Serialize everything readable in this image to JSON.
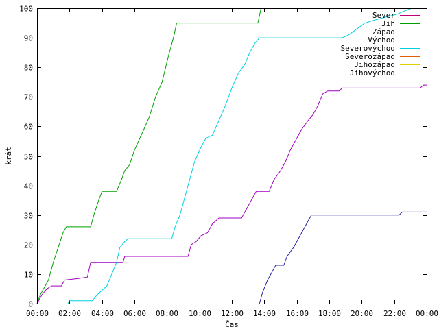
{
  "chart_data": {
    "type": "line",
    "xlabel": "Čas",
    "ylabel": "krát",
    "xlim": [
      0,
      24
    ],
    "ylim": [
      0,
      100
    ],
    "x_ticks": [
      "00:00",
      "02:00",
      "04:00",
      "06:00",
      "08:00",
      "10:00",
      "12:00",
      "14:00",
      "16:00",
      "18:00",
      "20:00",
      "22:00",
      "00:00"
    ],
    "y_ticks": [
      0,
      10,
      20,
      30,
      40,
      50,
      60,
      70,
      80,
      90,
      100
    ],
    "grid": false,
    "legend_position": "top-right",
    "series": [
      {
        "name": "Sever",
        "color": "#c00070",
        "points": []
      },
      {
        "name": "Jih",
        "color": "#00a000",
        "points": [
          [
            0,
            0
          ],
          [
            0.2,
            3
          ],
          [
            0.4,
            5
          ],
          [
            0.7,
            8
          ],
          [
            1.0,
            14
          ],
          [
            1.3,
            19
          ],
          [
            1.6,
            24
          ],
          [
            1.8,
            26
          ],
          [
            3.3,
            26
          ],
          [
            3.5,
            30
          ],
          [
            3.8,
            35
          ],
          [
            4.0,
            38
          ],
          [
            4.9,
            38
          ],
          [
            5.2,
            42
          ],
          [
            5.4,
            45
          ],
          [
            5.7,
            47
          ],
          [
            6.0,
            52
          ],
          [
            6.5,
            58
          ],
          [
            6.9,
            63
          ],
          [
            7.3,
            70
          ],
          [
            7.7,
            75
          ],
          [
            8.1,
            84
          ],
          [
            8.4,
            90
          ],
          [
            8.6,
            95
          ],
          [
            13.6,
            95
          ],
          [
            13.8,
            100
          ]
        ]
      },
      {
        "name": "Západ",
        "color": "#0080a0",
        "points": []
      },
      {
        "name": "Východ",
        "color": "#a000c0",
        "points": [
          [
            0,
            0
          ],
          [
            0.3,
            3
          ],
          [
            0.6,
            5
          ],
          [
            0.9,
            6
          ],
          [
            1.5,
            6
          ],
          [
            1.7,
            8
          ],
          [
            2.5,
            8.5
          ],
          [
            3.1,
            9
          ],
          [
            3.3,
            14
          ],
          [
            5.3,
            14
          ],
          [
            5.4,
            16
          ],
          [
            9.3,
            16
          ],
          [
            9.5,
            20
          ],
          [
            9.8,
            21
          ],
          [
            10.1,
            23
          ],
          [
            10.5,
            24
          ],
          [
            10.8,
            27
          ],
          [
            11.2,
            29
          ],
          [
            12.6,
            29
          ],
          [
            12.8,
            31
          ],
          [
            13.1,
            34
          ],
          [
            13.3,
            36
          ],
          [
            13.5,
            38
          ],
          [
            14.3,
            38
          ],
          [
            14.6,
            42
          ],
          [
            15.0,
            45
          ],
          [
            15.3,
            48
          ],
          [
            15.6,
            52
          ],
          [
            16.0,
            56
          ],
          [
            16.3,
            59
          ],
          [
            16.7,
            62
          ],
          [
            17.0,
            64
          ],
          [
            17.3,
            67
          ],
          [
            17.6,
            71
          ],
          [
            17.9,
            72
          ],
          [
            18.6,
            72
          ],
          [
            18.8,
            73
          ],
          [
            23.6,
            73
          ],
          [
            23.8,
            74
          ],
          [
            24,
            74
          ]
        ]
      },
      {
        "name": "Severovýchod",
        "color": "#00d0e0",
        "points": [
          [
            1.9,
            0
          ],
          [
            2.0,
            1
          ],
          [
            3.4,
            1
          ],
          [
            3.7,
            3
          ],
          [
            4.3,
            6
          ],
          [
            4.6,
            10
          ],
          [
            4.9,
            14
          ],
          [
            5.1,
            19
          ],
          [
            5.4,
            21
          ],
          [
            5.6,
            22
          ],
          [
            8.3,
            22
          ],
          [
            8.5,
            26
          ],
          [
            8.8,
            30
          ],
          [
            9.1,
            36
          ],
          [
            9.4,
            42
          ],
          [
            9.7,
            48
          ],
          [
            10.1,
            53
          ],
          [
            10.4,
            56
          ],
          [
            10.8,
            57
          ],
          [
            11.2,
            62
          ],
          [
            11.6,
            67
          ],
          [
            12.0,
            73
          ],
          [
            12.4,
            78
          ],
          [
            12.8,
            81
          ],
          [
            13.1,
            85
          ],
          [
            13.4,
            88
          ],
          [
            13.7,
            90
          ],
          [
            18.8,
            90
          ],
          [
            19.2,
            91
          ],
          [
            19.7,
            93
          ],
          [
            20.2,
            95
          ],
          [
            20.8,
            96
          ],
          [
            21.5,
            97
          ],
          [
            22.2,
            98
          ],
          [
            22.6,
            99
          ],
          [
            23.1,
            100
          ],
          [
            23.3,
            100
          ]
        ]
      },
      {
        "name": "Severozápad",
        "color": "#e06000",
        "points": []
      },
      {
        "name": "Jihozápad",
        "color": "#e0d000",
        "points": []
      },
      {
        "name": "Jihovýchod",
        "color": "#2020a0",
        "points": [
          [
            13.7,
            0
          ],
          [
            13.9,
            4
          ],
          [
            14.2,
            8
          ],
          [
            14.5,
            11
          ],
          [
            14.7,
            13
          ],
          [
            15.2,
            13
          ],
          [
            15.4,
            16
          ],
          [
            15.8,
            19
          ],
          [
            16.1,
            22
          ],
          [
            16.4,
            25
          ],
          [
            16.7,
            28
          ],
          [
            16.9,
            30
          ],
          [
            22.3,
            30
          ],
          [
            22.5,
            31
          ],
          [
            24,
            31
          ]
        ]
      }
    ]
  }
}
